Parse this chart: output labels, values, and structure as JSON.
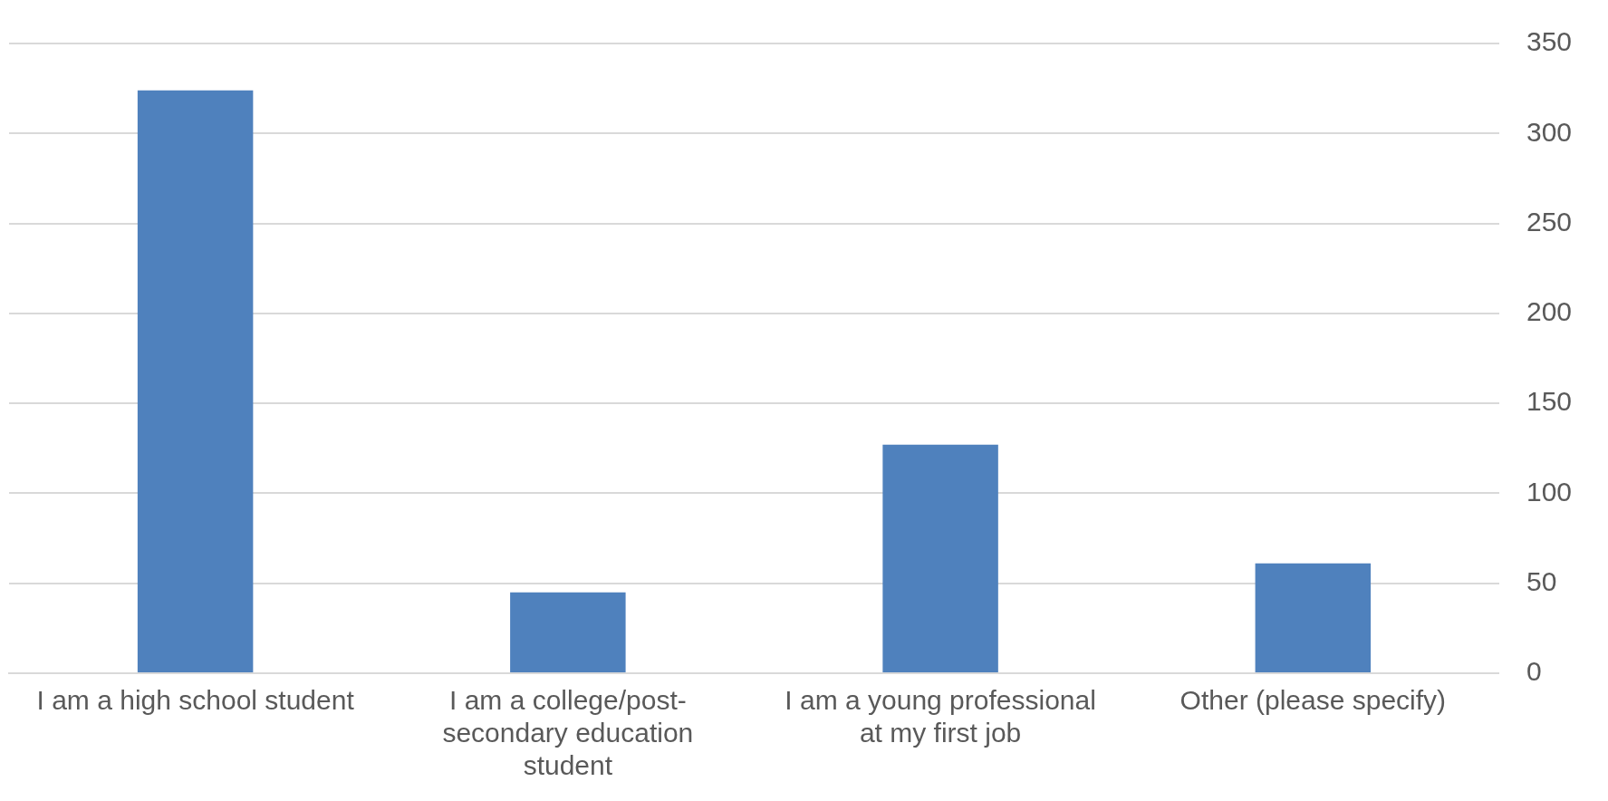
{
  "chart_data": {
    "type": "bar",
    "categories": [
      "I am a high school student",
      "I am a college/post-secondary education student",
      "I am a young professional at my first job",
      "Other (please specify)"
    ],
    "values": [
      324,
      45,
      127,
      61
    ],
    "color": "#4f81bd",
    "ylim": [
      0,
      350
    ],
    "yticks": [
      0,
      50,
      100,
      150,
      200,
      250,
      300,
      350
    ],
    "grid": "y",
    "legend": false
  }
}
